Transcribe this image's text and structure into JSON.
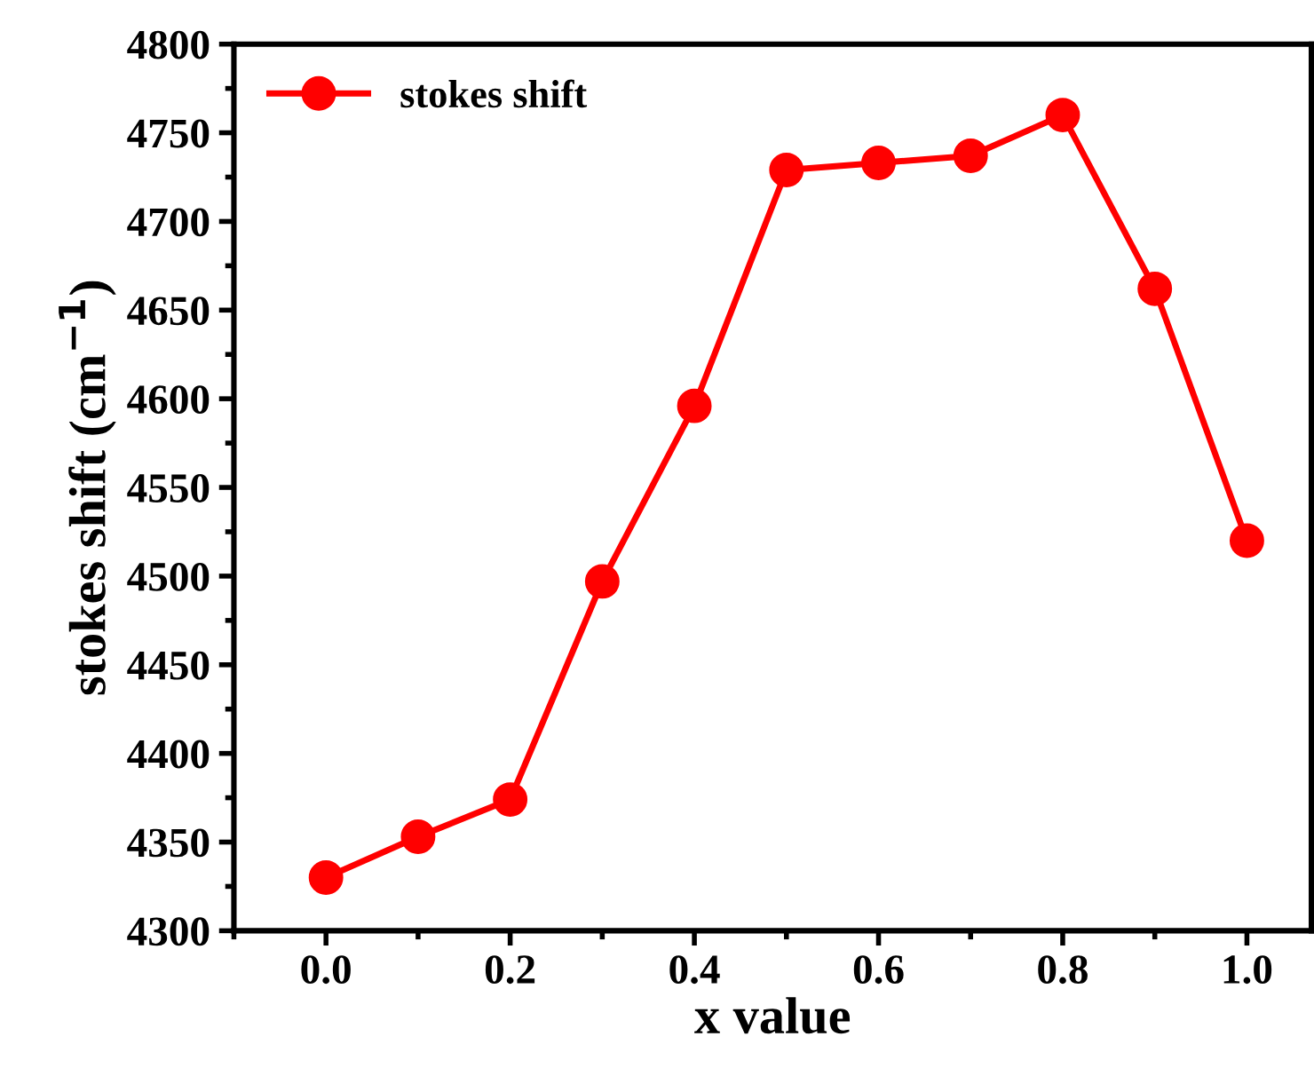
{
  "chart_data": {
    "type": "line",
    "xlabel": "x value",
    "ylabel": "stokes shift (cm$^{−1}$)",
    "x": [
      0.0,
      0.1,
      0.2,
      0.3,
      0.4,
      0.5,
      0.6,
      0.7,
      0.8,
      0.9,
      1.0
    ],
    "series": [
      {
        "name": "stokes shift",
        "color": "#ff0000",
        "values": [
          4330,
          4353,
          4374,
          4497,
          4596,
          4729,
          4733,
          4737,
          4760,
          4662,
          4520
        ]
      }
    ],
    "xlim": [
      -0.1,
      1.07
    ],
    "xticks": [
      {
        "value": 0.0,
        "label": "0.0"
      },
      0.2,
      0.4,
      0.6,
      0.8,
      {
        "value": 1.0,
        "label": "1.0"
      }
    ],
    "ylim": [
      4300,
      4800
    ],
    "yticks": [
      4300,
      4350,
      4400,
      4450,
      4500,
      4550,
      4600,
      4650,
      4700,
      4750,
      4800
    ],
    "grid": false,
    "legend": "top left",
    "marker": "circle",
    "line_style": "solid"
  }
}
